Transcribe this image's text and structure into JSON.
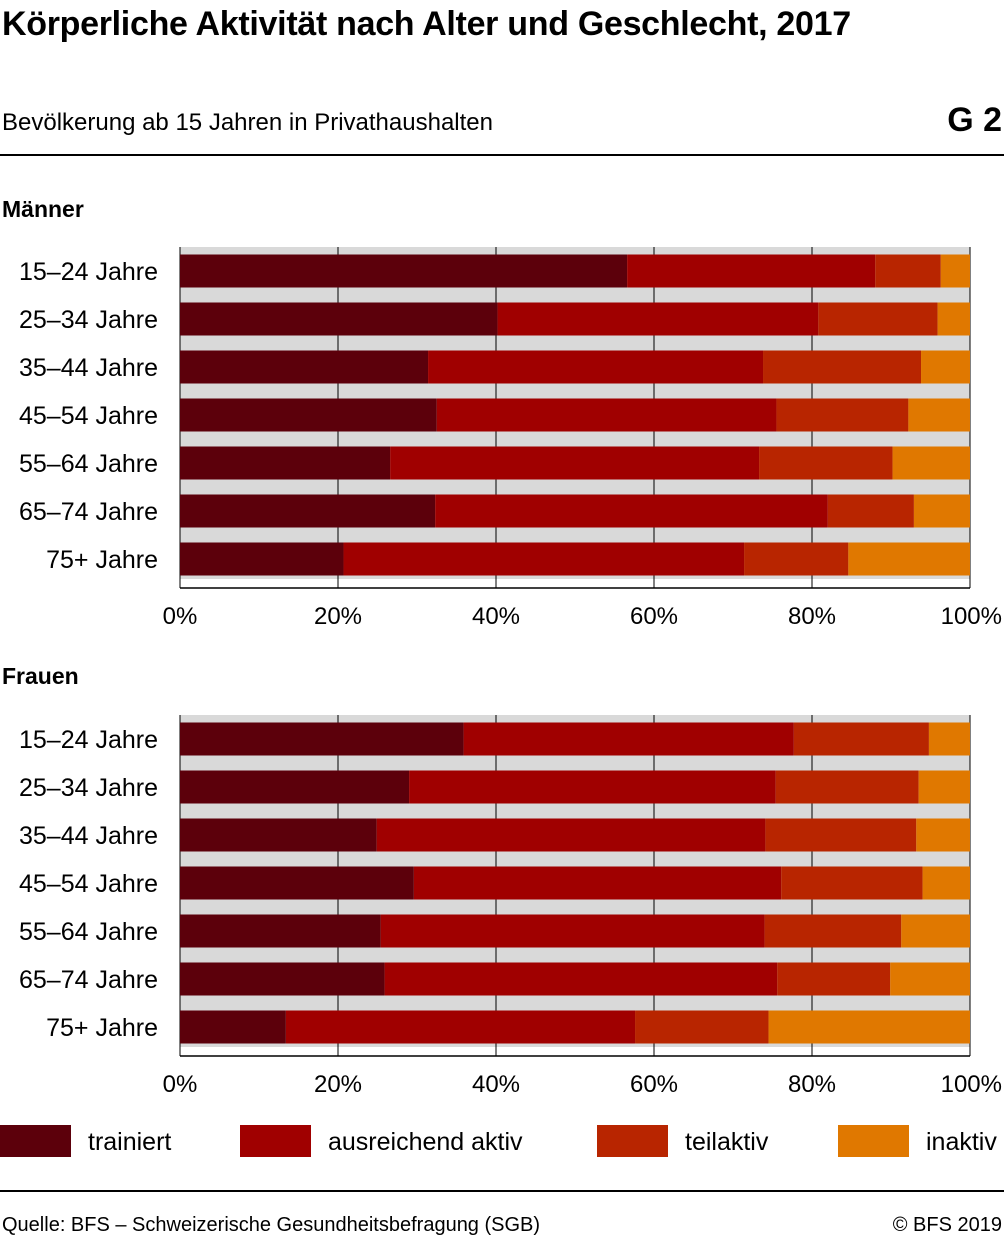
{
  "header": {
    "title": "Körperliche Aktivität nach Alter und Geschlecht, 2017",
    "subtitle": "Bevölkerung ab 15 Jahren in Privathaushalten",
    "graphic_number": "G 2"
  },
  "colors": {
    "trainiert": "#5c000b",
    "ausreichend aktiv": "#a00000",
    "teilaktiv": "#b82500",
    "inaktiv": "#e07800",
    "band": "#d9d9d9"
  },
  "chart_data": [
    {
      "type": "bar",
      "orientation": "horizontal",
      "stacked": true,
      "title": "Männer",
      "categories": [
        "15–24 Jahre",
        "25–34 Jahre",
        "35–44 Jahre",
        "45–54 Jahre",
        "55–64 Jahre",
        "65–74 Jahre",
        "75+ Jahre"
      ],
      "series": [
        {
          "name": "trainiert",
          "values": [
            56.6,
            40.2,
            31.4,
            32.5,
            26.6,
            32.3,
            20.7
          ]
        },
        {
          "name": "ausreichend aktiv",
          "values": [
            31.4,
            40.6,
            42.4,
            43.0,
            46.7,
            49.7,
            50.7
          ]
        },
        {
          "name": "teilaktiv",
          "values": [
            8.3,
            15.1,
            20.0,
            16.7,
            16.9,
            10.9,
            13.2
          ]
        },
        {
          "name": "inaktiv",
          "values": [
            3.7,
            4.1,
            6.2,
            7.8,
            9.8,
            7.1,
            15.4
          ]
        }
      ],
      "xlim": [
        0,
        100
      ],
      "xticks": [
        "0%",
        "20%",
        "40%",
        "60%",
        "80%",
        "100%"
      ]
    },
    {
      "type": "bar",
      "orientation": "horizontal",
      "stacked": true,
      "title": "Frauen",
      "categories": [
        "15–24 Jahre",
        "25–34 Jahre",
        "35–44 Jahre",
        "45–54 Jahre",
        "55–64 Jahre",
        "65–74 Jahre",
        "75+ Jahre"
      ],
      "series": [
        {
          "name": "trainiert",
          "values": [
            35.9,
            29.0,
            24.9,
            29.6,
            25.4,
            25.9,
            13.4
          ]
        },
        {
          "name": "ausreichend aktiv",
          "values": [
            41.8,
            46.4,
            49.2,
            46.5,
            48.6,
            49.7,
            44.2
          ]
        },
        {
          "name": "teilaktiv",
          "values": [
            17.1,
            18.1,
            19.1,
            17.9,
            17.3,
            14.3,
            16.9
          ]
        },
        {
          "name": "inaktiv",
          "values": [
            5.2,
            6.5,
            6.8,
            6.0,
            8.7,
            10.1,
            25.5
          ]
        }
      ],
      "xlim": [
        0,
        100
      ],
      "xticks": [
        "0%",
        "20%",
        "40%",
        "60%",
        "80%",
        "100%"
      ]
    }
  ],
  "legend": [
    "trainiert",
    "ausreichend aktiv",
    "teilaktiv",
    "inaktiv"
  ],
  "footer": {
    "source": "Quelle: BFS – Schweizerische Gesundheitsbefragung (SGB)",
    "copyright": "© BFS 2019"
  }
}
